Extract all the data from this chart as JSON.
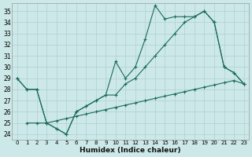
{
  "xlabel": "Humidex (Indice chaleur)",
  "xlim": [
    -0.5,
    23.5
  ],
  "ylim": [
    23.5,
    35.7
  ],
  "yticks": [
    24,
    25,
    26,
    27,
    28,
    29,
    30,
    31,
    32,
    33,
    34,
    35
  ],
  "xticks": [
    0,
    1,
    2,
    3,
    4,
    5,
    6,
    7,
    8,
    9,
    10,
    11,
    12,
    13,
    14,
    15,
    16,
    17,
    18,
    19,
    20,
    21,
    22,
    23
  ],
  "background_color": "#cce8e8",
  "grid_color": "#b0d0d0",
  "line_color": "#1a6b5a",
  "s1_x": [
    0,
    1,
    2,
    3,
    4,
    5,
    6,
    7,
    8,
    9,
    10,
    11,
    12,
    13,
    14,
    15,
    16,
    17,
    18,
    19,
    20,
    21,
    22,
    23
  ],
  "s1_y": [
    29,
    28,
    28,
    25,
    24.5,
    24,
    26,
    26.5,
    27,
    27.5,
    30.5,
    29,
    30,
    32.5,
    35.5,
    34.3,
    34.5,
    34.5,
    34.5,
    35.0,
    34,
    30,
    29.5,
    28.5
  ],
  "s2_x": [
    0,
    1,
    2,
    3,
    4,
    5,
    6,
    7,
    8,
    9,
    10,
    11,
    12,
    13,
    14,
    15,
    16,
    17,
    18,
    19,
    20,
    21,
    22,
    23
  ],
  "s2_y": [
    29,
    28,
    28,
    25,
    24.5,
    24,
    26,
    26.5,
    27,
    27.5,
    27.5,
    28.5,
    29,
    30,
    31.0,
    32.0,
    33.0,
    34.0,
    34.5,
    35.0,
    34,
    30,
    29.5,
    28.5
  ],
  "s3_x": [
    1,
    2,
    3,
    4,
    5,
    6,
    7,
    8,
    9,
    10,
    11,
    12,
    13,
    14,
    15,
    16,
    17,
    18,
    19,
    20,
    21,
    22,
    23
  ],
  "s3_y": [
    25,
    25,
    25,
    25.2,
    25.4,
    25.6,
    25.8,
    26.0,
    26.2,
    26.4,
    26.6,
    26.8,
    27.0,
    27.2,
    27.4,
    27.6,
    27.8,
    28.0,
    28.2,
    28.4,
    28.6,
    28.8,
    28.5
  ]
}
